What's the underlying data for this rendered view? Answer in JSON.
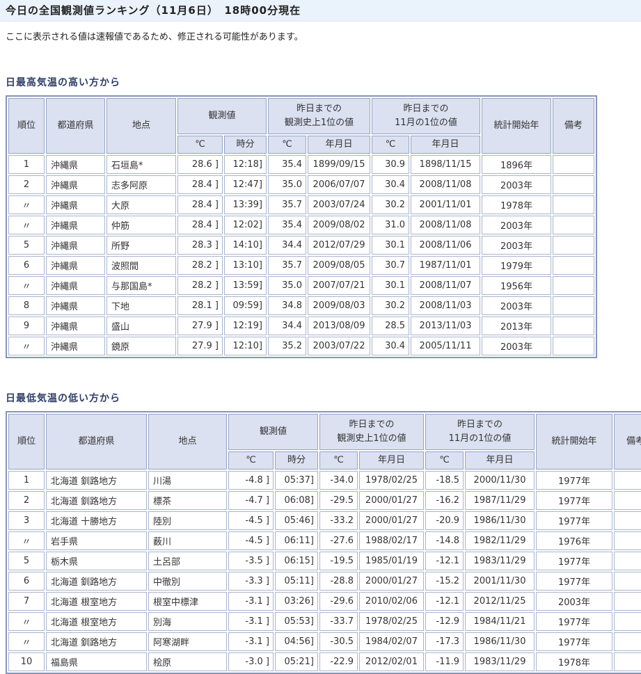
{
  "page": {
    "title": "今日の全国観測値ランキング（11月6日）　18時00分現在",
    "notice": "ここに表示される値は速報値であるため、修正される可能性があります。"
  },
  "colors": {
    "titlebar_bg": "#eaf2fb",
    "header_cell_bg": "#dbe1f0",
    "table_border": "#8495b8",
    "cell_border": "#a8b3cd",
    "section_title_text": "#2e3f66"
  },
  "tables": {
    "headers": {
      "rank": "順位",
      "prefecture": "都道府県",
      "station": "地点",
      "observed": "観測値",
      "record_all_line1": "昨日までの",
      "record_all_line2": "観測史上1位の値",
      "record_nov_line1": "昨日までの",
      "record_nov_line2": "11月の1位の値",
      "deg": "℃",
      "time": "時分",
      "date": "年月日",
      "stat_start": "統計開始年",
      "remarks": "備考"
    },
    "high": {
      "title": "日最高気温の高い方から",
      "rows": [
        [
          "1",
          "沖縄県",
          "石垣島*",
          "28.6 ]",
          "12:18]",
          "35.4",
          "1899/09/15",
          "30.9",
          "1898/11/15",
          "1896年",
          ""
        ],
        [
          "2",
          "沖縄県",
          "志多阿原",
          "28.4 ]",
          "12:47]",
          "35.0",
          "2006/07/07",
          "30.4",
          "2008/11/08",
          "2003年",
          ""
        ],
        [
          "〃",
          "沖縄県",
          "大原",
          "28.4 ]",
          "13:39]",
          "35.7",
          "2003/07/24",
          "30.2",
          "2001/11/01",
          "1978年",
          ""
        ],
        [
          "〃",
          "沖縄県",
          "仲筋",
          "28.4 ]",
          "12:02]",
          "35.4",
          "2009/08/02",
          "31.0",
          "2008/11/08",
          "2003年",
          ""
        ],
        [
          "5",
          "沖縄県",
          "所野",
          "28.3 ]",
          "14:10]",
          "34.4",
          "2012/07/29",
          "30.1",
          "2008/11/06",
          "2003年",
          ""
        ],
        [
          "6",
          "沖縄県",
          "波照間",
          "28.2 ]",
          "13:10]",
          "35.7",
          "2009/08/05",
          "30.7",
          "1987/11/01",
          "1979年",
          ""
        ],
        [
          "〃",
          "沖縄県",
          "与那国島*",
          "28.2 ]",
          "13:59]",
          "35.0",
          "2007/07/21",
          "30.1",
          "2008/11/07",
          "1956年",
          ""
        ],
        [
          "8",
          "沖縄県",
          "下地",
          "28.1 ]",
          "09:59]",
          "34.8",
          "2009/08/03",
          "30.2",
          "2008/11/03",
          "2003年",
          ""
        ],
        [
          "9",
          "沖縄県",
          "盛山",
          "27.9 ]",
          "12:19]",
          "34.4",
          "2013/08/09",
          "28.5",
          "2013/11/03",
          "2013年",
          ""
        ],
        [
          "〃",
          "沖縄県",
          "鏡原",
          "27.9 ]",
          "12:10]",
          "35.2",
          "2003/07/22",
          "30.4",
          "2005/11/11",
          "2003年",
          ""
        ]
      ]
    },
    "low": {
      "title": "日最低気温の低い方から",
      "rows": [
        [
          "1",
          "北海道 釧路地方",
          "川湯",
          "-4.8 ]",
          "05:37]",
          "-34.0",
          "1978/02/25",
          "-18.5",
          "2000/11/30",
          "1977年",
          ""
        ],
        [
          "2",
          "北海道 釧路地方",
          "標茶",
          "-4.7 ]",
          "06:08]",
          "-29.5",
          "2000/01/27",
          "-16.2",
          "1987/11/29",
          "1977年",
          ""
        ],
        [
          "3",
          "北海道 十勝地方",
          "陸別",
          "-4.5 ]",
          "05:46]",
          "-33.2",
          "2000/01/27",
          "-20.9",
          "1986/11/30",
          "1977年",
          ""
        ],
        [
          "〃",
          "岩手県",
          "薮川",
          "-4.5 ]",
          "06:11]",
          "-27.6",
          "1988/02/17",
          "-14.8",
          "1982/11/29",
          "1976年",
          ""
        ],
        [
          "5",
          "栃木県",
          "土呂部",
          "-3.5 ]",
          "06:15]",
          "-19.5",
          "1985/01/19",
          "-12.1",
          "1983/11/29",
          "1977年",
          ""
        ],
        [
          "6",
          "北海道 釧路地方",
          "中徹別",
          "-3.3 ]",
          "05:11]",
          "-28.8",
          "2000/01/27",
          "-15.2",
          "2001/11/30",
          "1977年",
          ""
        ],
        [
          "7",
          "北海道 根室地方",
          "根室中標津",
          "-3.1 ]",
          "03:26]",
          "-29.6",
          "2010/02/06",
          "-12.1",
          "2012/11/25",
          "2003年",
          ""
        ],
        [
          "〃",
          "北海道 根室地方",
          "別海",
          "-3.1 ]",
          "05:53]",
          "-33.7",
          "1978/02/25",
          "-12.9",
          "1984/11/21",
          "1977年",
          ""
        ],
        [
          "〃",
          "北海道 釧路地方",
          "阿寒湖畔",
          "-3.1 ]",
          "04:56]",
          "-30.5",
          "1984/02/07",
          "-17.3",
          "1986/11/30",
          "1977年",
          ""
        ],
        [
          "10",
          "福島県",
          "桧原",
          "-3.0 ]",
          "05:21]",
          "-22.9",
          "2012/02/01",
          "-11.9",
          "1983/11/29",
          "1978年",
          ""
        ]
      ]
    }
  }
}
